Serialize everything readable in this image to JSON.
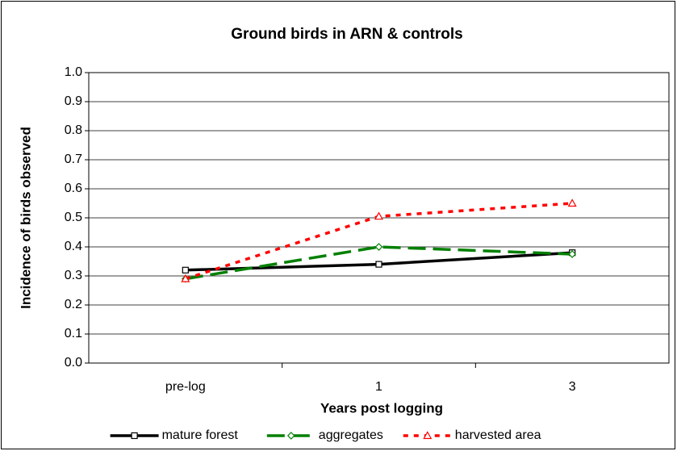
{
  "chart_data": {
    "type": "line",
    "title": "Ground birds in ARN & controls",
    "xlabel": "Years post logging",
    "ylabel": "Incidence of birds observed",
    "categories": [
      "pre-log",
      "1",
      "3"
    ],
    "series": [
      {
        "name": "mature forest",
        "color": "#000000",
        "marker": "square",
        "values": [
          0.32,
          0.34,
          0.38
        ]
      },
      {
        "name": "aggregates",
        "color": "#008000",
        "marker": "diamond",
        "values": [
          0.29,
          0.4,
          0.375
        ]
      },
      {
        "name": "harvested area",
        "color": "#ff0000",
        "marker": "triangle",
        "values": [
          0.29,
          0.505,
          0.55
        ]
      }
    ],
    "ylim": [
      0,
      1
    ],
    "yticks": [
      {
        "value": 0,
        "label": "0.0"
      },
      0.1,
      0.2,
      0.3,
      0.4,
      0.5,
      0.6,
      0.7,
      0.8,
      0.9,
      {
        "value": 1,
        "label": "1.0"
      }
    ],
    "grid": true,
    "legend": "bottom"
  }
}
